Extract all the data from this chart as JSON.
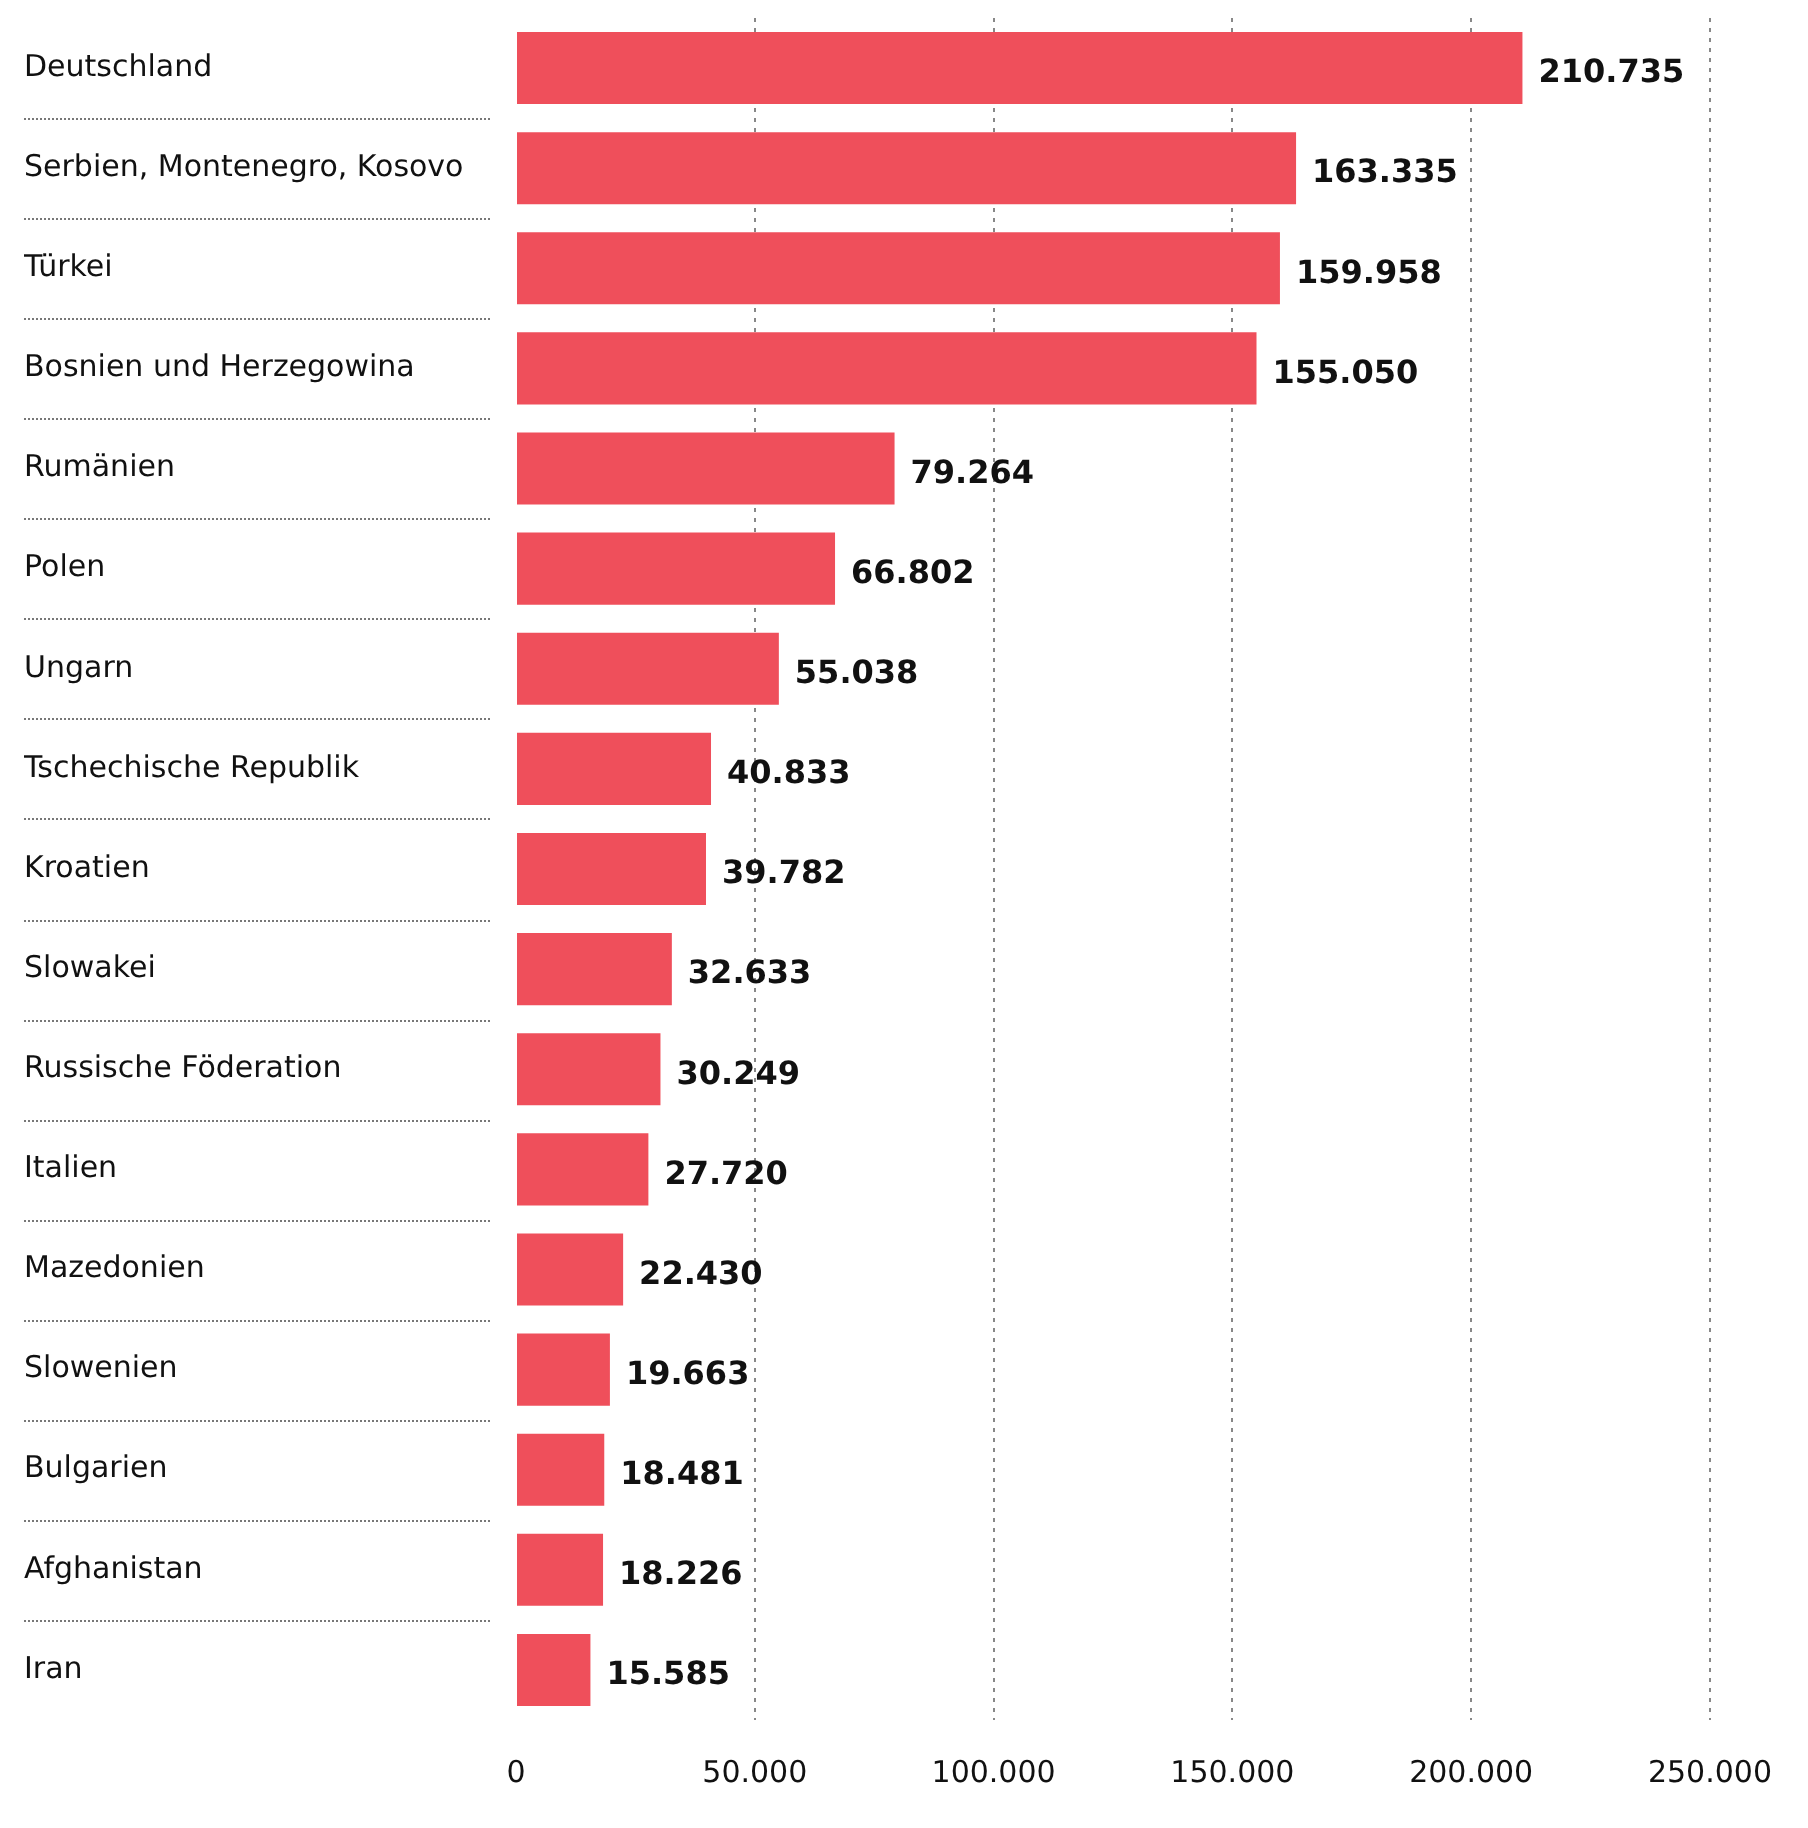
{
  "chart_data": {
    "type": "bar",
    "orientation": "horizontal",
    "categories": [
      "Deutschland",
      "Serbien, Montenegro, Kosovo",
      "Türkei",
      "Bosnien und Herzegowina",
      "Rumänien",
      "Polen",
      "Ungarn",
      "Tschechische Republik",
      "Kroatien",
      "Slowakei",
      "Russische Föderation",
      "Italien",
      "Mazedonien",
      "Slowenien",
      "Bulgarien",
      "Afghanistan",
      "Iran"
    ],
    "values": [
      210735,
      163335,
      159958,
      155050,
      79264,
      66802,
      55038,
      40833,
      39782,
      32633,
      30249,
      27720,
      22430,
      19663,
      18481,
      18226,
      15585
    ],
    "value_labels": [
      "210.735",
      "163.335",
      "159.958",
      "155.050",
      "79.264",
      "66.802",
      "55.038",
      "40.833",
      "39.782",
      "32.633",
      "30.249",
      "27.720",
      "22.430",
      "19.663",
      "18.481",
      "18.226",
      "15.585"
    ],
    "color": "#ef4f5b",
    "xlim": [
      0,
      250000
    ],
    "xticks": [
      0,
      {
        "value": 50000,
        "label": "50.000"
      },
      {
        "value": 100000,
        "label": "100.000"
      },
      {
        "value": 150000,
        "label": "150.000"
      },
      {
        "value": 200000,
        "label": "200.000"
      },
      {
        "value": 250000,
        "label": "250.000"
      }
    ],
    "grid": "x",
    "legend": false
  }
}
